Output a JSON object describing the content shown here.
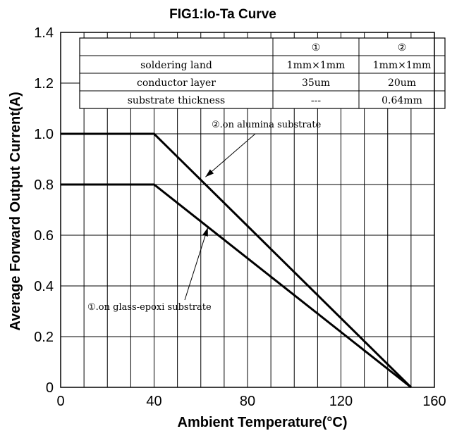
{
  "chart_data": {
    "type": "line",
    "title": "FIG1:Io-Ta Curve",
    "xlabel": "Ambient Temperature(°C)",
    "ylabel": "Average Forward Output Current(A)",
    "xlim": [
      0,
      160
    ],
    "ylim": [
      0,
      1.4
    ],
    "xticks": [
      0,
      40,
      80,
      120,
      160
    ],
    "xtick_labels": [
      "0",
      "40",
      "80",
      "120",
      "160"
    ],
    "yticks": [
      0,
      0.2,
      0.4,
      0.6,
      0.8,
      1.0,
      1.2,
      1.4
    ],
    "ytick_labels": [
      "0",
      "0.2",
      "0.4",
      "0.6",
      "0.8",
      "1.0",
      "1.2",
      "1.4"
    ],
    "grid_x_step": 10,
    "grid_y_step": 0.2,
    "grid": true,
    "series": [
      {
        "x": [
          0,
          40,
          150
        ],
        "y": [
          1.0,
          1.0,
          0
        ]
      },
      {
        "x": [
          0,
          40,
          150
        ],
        "y": [
          0.8,
          0.8,
          0
        ]
      }
    ],
    "annotations": [
      {
        "text": "②.on alumina substrate",
        "x": 62,
        "y": 1.05,
        "point_x": 62,
        "point_y": 0.83
      },
      {
        "text": "①.on glass-epoxi substrate",
        "x": 62,
        "y": 0.2,
        "point_x": 63,
        "point_y": 0.63
      }
    ],
    "table": {
      "columns": [
        "",
        "①",
        "②"
      ],
      "rows": [
        [
          "soldering land",
          "1mm×1mm",
          "1mm×1mm"
        ],
        [
          "conductor layer",
          "35um",
          "20um"
        ],
        [
          "substrate thickness",
          "---",
          "0.64mm"
        ]
      ]
    }
  }
}
